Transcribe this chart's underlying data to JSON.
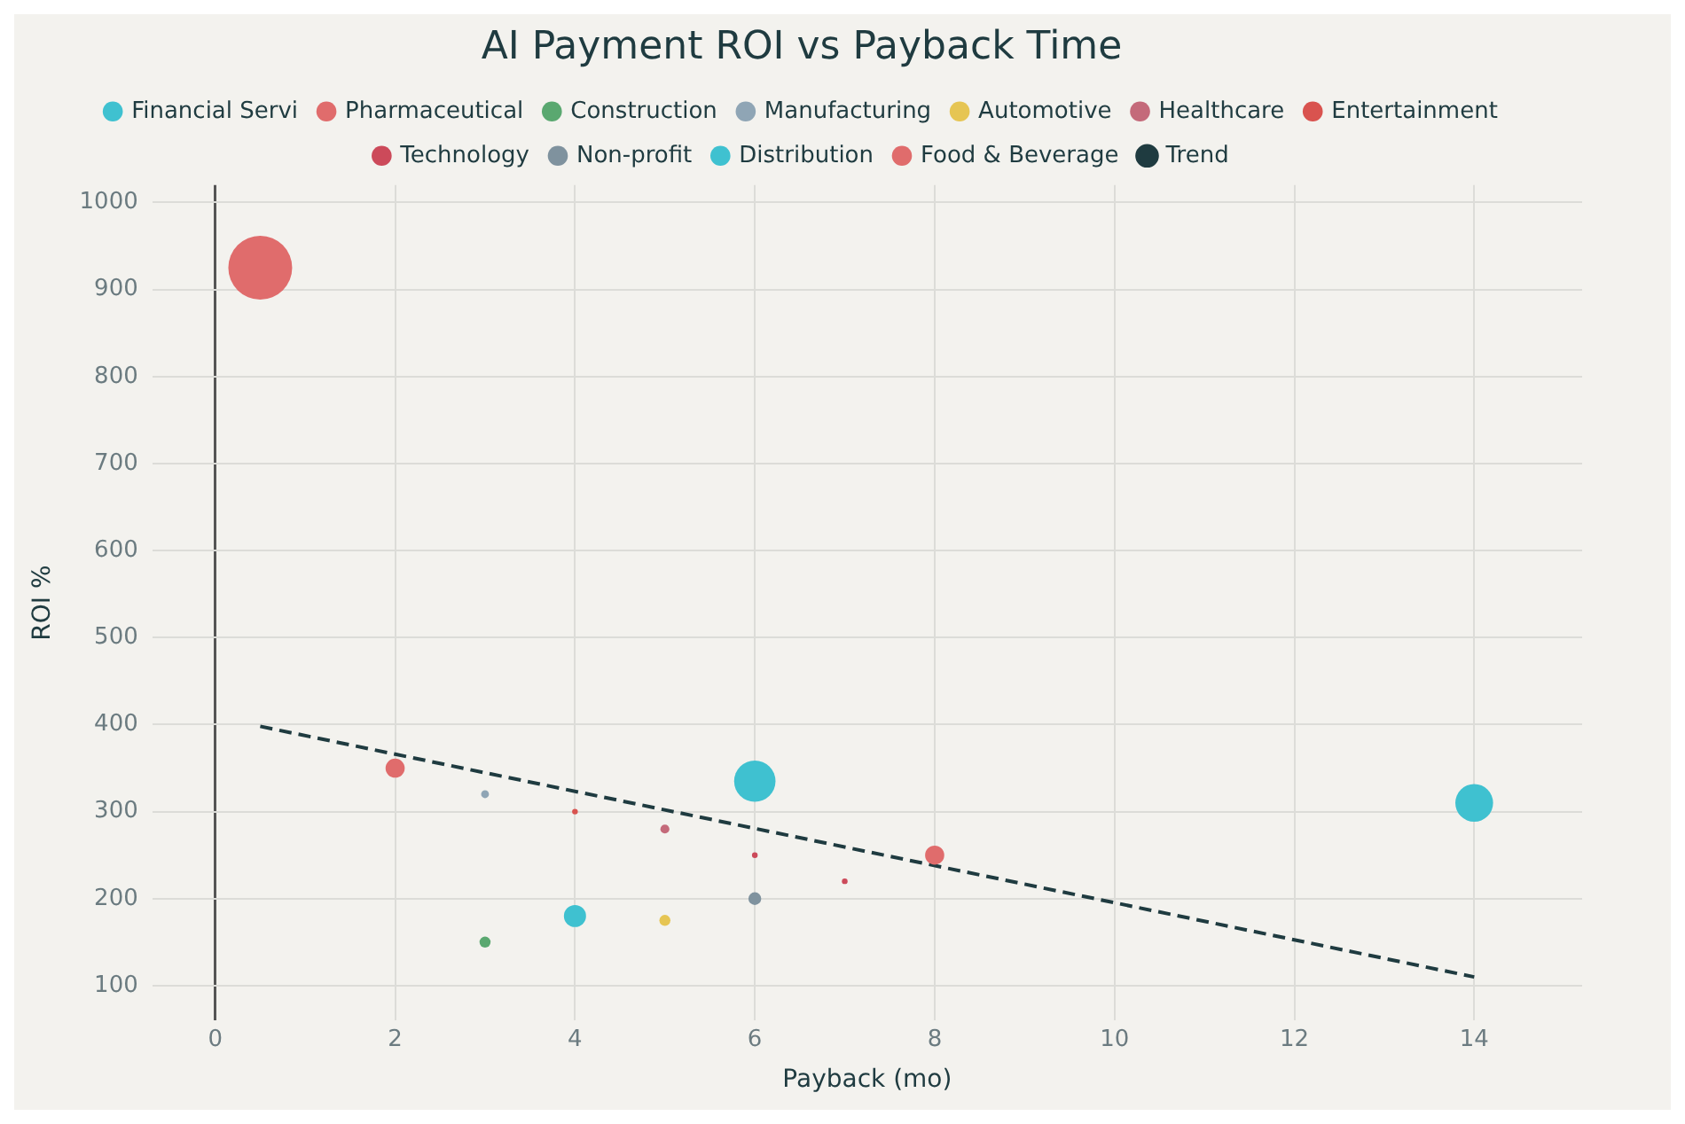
{
  "chart_data": {
    "type": "bubble",
    "title": "AI Payment ROI vs Payback Time",
    "xlabel": "Payback (mo)",
    "ylabel": "ROI %",
    "xlim": [
      -0.7,
      15.2
    ],
    "xticks": [
      0,
      2,
      4,
      6,
      8,
      10,
      12,
      14
    ],
    "ylim": [
      60,
      1020
    ],
    "yticks": [
      100,
      200,
      300,
      400,
      500,
      600,
      700,
      800,
      900,
      1000
    ],
    "grid": true,
    "legend": "top",
    "series": [
      {
        "name": "Financial Servi",
        "color": "#3fc1d0",
        "x": [
          6,
          4
        ],
        "values": [
          335,
          180
        ],
        "sizes": [
          0.42,
          0.12
        ]
      },
      {
        "name": "Pharmaceutical",
        "color": "#e06c6c",
        "x": [
          2,
          8
        ],
        "values": [
          350,
          250
        ],
        "sizes": [
          0.09,
          0.09
        ]
      },
      {
        "name": "Construction",
        "color": "#5aa870",
        "x": [
          3
        ],
        "values": [
          150
        ],
        "sizes": [
          0.03
        ]
      },
      {
        "name": "Manufacturing",
        "color": "#8fa5b5",
        "x": [
          3
        ],
        "values": [
          320
        ],
        "sizes": [
          0.015
        ]
      },
      {
        "name": "Automotive",
        "color": "#e6c553",
        "x": [
          5
        ],
        "values": [
          175
        ],
        "sizes": [
          0.03
        ]
      },
      {
        "name": "Healthcare",
        "color": "#c46a7a",
        "x": [
          5
        ],
        "values": [
          280
        ],
        "sizes": [
          0.02
        ]
      },
      {
        "name": "Entertainment",
        "color": "#d9534f",
        "x": [
          4
        ],
        "values": [
          300
        ],
        "sizes": [
          0.008
        ]
      },
      {
        "name": "Technology",
        "color": "#cc4a5a",
        "x": [
          6,
          7
        ],
        "values": [
          250,
          220
        ],
        "sizes": [
          0.008,
          0.008
        ]
      },
      {
        "name": "Non-profit",
        "color": "#7f929e",
        "x": [
          6
        ],
        "values": [
          200
        ],
        "sizes": [
          0.04
        ]
      },
      {
        "name": "Distribution",
        "color": "#3fc1d0",
        "x": [
          14
        ],
        "values": [
          310
        ],
        "sizes": [
          0.35
        ]
      },
      {
        "name": "Food & Beverage",
        "color": "#e06c6c",
        "x": [
          0.5
        ],
        "values": [
          925
        ],
        "sizes": [
          1
        ]
      },
      {
        "name": "Trend",
        "type": "line",
        "color": "#1f3b40",
        "line_style": "dashed",
        "marker": "none",
        "x": [
          0.5,
          14
        ],
        "values": [
          398,
          110
        ]
      }
    ]
  }
}
